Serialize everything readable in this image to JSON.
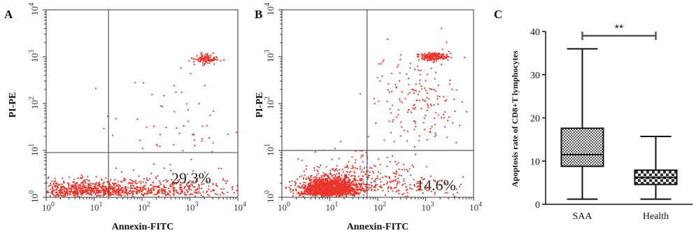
{
  "panels": {
    "A": {
      "label": "A",
      "xlabel": "Annexin-FITC",
      "ylabel": "PI-PE",
      "quadrant_percent": "29.3%"
    },
    "B": {
      "label": "B",
      "xlabel": "Annexin-FITC",
      "ylabel": "PI-PE",
      "quadrant_percent": "14.6%"
    },
    "C": {
      "label": "C",
      "ylabel": "Apoptosis rate of CD8+T lymphocytes",
      "significance": "**"
    }
  },
  "colors": {
    "dots": "#e8352b",
    "quadrant_lines": "#555555",
    "box_fill": "#9a9a9a"
  },
  "chart_data": [
    {
      "type": "scatter",
      "panel": "A",
      "xlabel": "Annexin-FITC",
      "ylabel": "PI-PE",
      "xscale": "log",
      "yscale": "log",
      "xlim": [
        1,
        10000
      ],
      "ylim": [
        1,
        10000
      ],
      "x_ticks": [
        "10^0",
        "10^1",
        "10^2",
        "10^3",
        "10^4"
      ],
      "y_ticks": [
        "10^0",
        "10^1",
        "10^2",
        "10^3",
        "10^4"
      ],
      "quadrant_gates": {
        "x": 20,
        "y": 9
      },
      "annotation": "29.3%",
      "clusters": [
        {
          "center": [
            5,
            1.8
          ],
          "spread": [
            0.55,
            0.15
          ],
          "count": 520
        },
        {
          "center": [
            60,
            1.8
          ],
          "spread": [
            0.9,
            0.15
          ],
          "count": 380
        },
        {
          "center": [
            600,
            2.2
          ],
          "spread": [
            0.7,
            0.2
          ],
          "count": 150
        },
        {
          "center": [
            2200,
            900
          ],
          "spread": [
            0.12,
            0.06
          ],
          "count": 110
        },
        {
          "center": [
            400,
            40
          ],
          "spread": [
            0.7,
            0.8
          ],
          "count": 60
        }
      ]
    },
    {
      "type": "scatter",
      "panel": "B",
      "xlabel": "Annexin-FITC",
      "ylabel": "PI-PE",
      "xscale": "log",
      "yscale": "log",
      "xlim": [
        1,
        10000
      ],
      "ylim": [
        1,
        10000
      ],
      "x_ticks": [
        "10^0",
        "10^1",
        "10^2",
        "10^3",
        "10^4"
      ],
      "y_ticks": [
        "10^0",
        "10^1",
        "10^2",
        "10^3",
        "10^4"
      ],
      "quadrant_gates": {
        "x": 60,
        "y": 10
      },
      "annotation": "14.6%",
      "clusters": [
        {
          "center": [
            10,
            2.2
          ],
          "spread": [
            0.3,
            0.15
          ],
          "count": 1600
        },
        {
          "center": [
            40,
            3
          ],
          "spread": [
            0.6,
            0.35
          ],
          "count": 300
        },
        {
          "center": [
            1500,
            1000
          ],
          "spread": [
            0.15,
            0.05
          ],
          "count": 200
        },
        {
          "center": [
            700,
            120
          ],
          "spread": [
            0.5,
            0.7
          ],
          "count": 180
        },
        {
          "center": [
            400,
            2.5
          ],
          "spread": [
            0.6,
            0.25
          ],
          "count": 90
        }
      ]
    },
    {
      "type": "box",
      "panel": "C",
      "ylabel": "Apoptosis rate of CD8+T lymphocytes",
      "categories": [
        "SAA",
        "Health"
      ],
      "ylim": [
        0,
        40
      ],
      "y_ticks": [
        0,
        10,
        20,
        30,
        40
      ],
      "series": [
        {
          "category": "SAA",
          "min": 1.2,
          "q1": 8.8,
          "median": 11.5,
          "q3": 17.6,
          "max": 36
        },
        {
          "category": "Health",
          "min": 1.2,
          "q1": 4.6,
          "median": 6.2,
          "q3": 7.9,
          "max": 15.7
        }
      ],
      "significance": {
        "label": "**",
        "between": [
          "SAA",
          "Health"
        ],
        "y": 39
      }
    }
  ]
}
